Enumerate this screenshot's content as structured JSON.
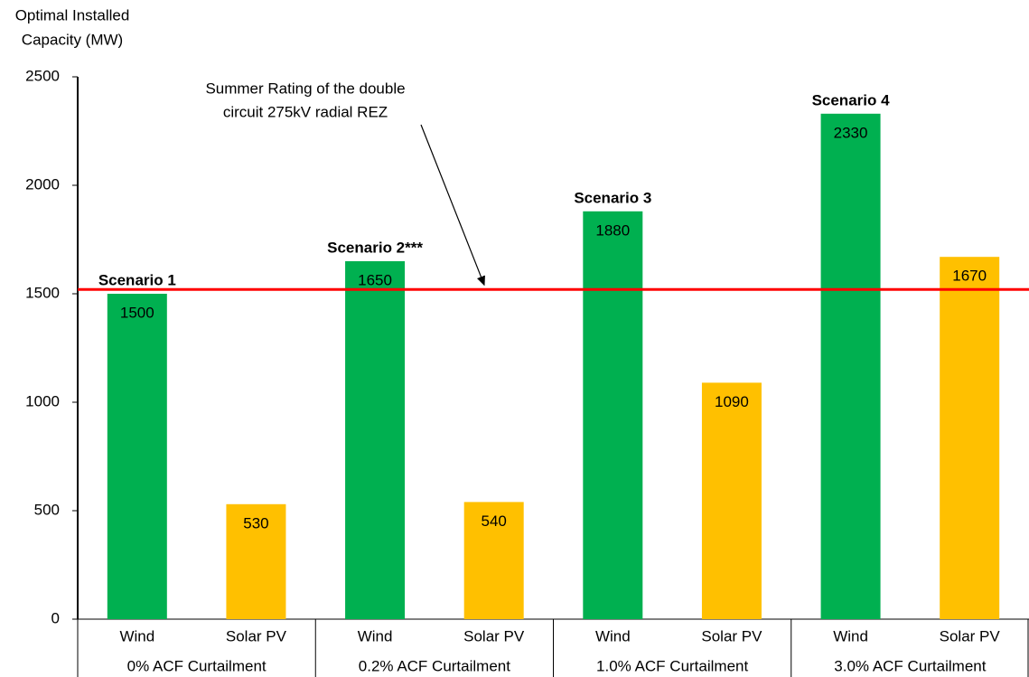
{
  "chart_data": {
    "type": "bar",
    "ylabel": [
      "Optimal Installed",
      "Capacity (MW)"
    ],
    "categories": [
      "Wind",
      "Solar PV",
      "Wind",
      "Solar PV",
      "Wind",
      "Solar PV",
      "Wind",
      "Solar PV"
    ],
    "groups": [
      "0% ACF Curtailment",
      "0.2% ACF Curtailment",
      "1.0% ACF Curtailment",
      "3.0% ACF Curtailment"
    ],
    "values": [
      1500,
      530,
      1650,
      540,
      1880,
      1090,
      2330,
      1670
    ],
    "colors": [
      "#00b050",
      "#ffc000",
      "#00b050",
      "#ffc000",
      "#00b050",
      "#ffc000",
      "#00b050",
      "#ffc000"
    ],
    "bar_labels": [
      "Scenario 1",
      null,
      "Scenario 2***",
      null,
      "Scenario 3",
      null,
      "Scenario 4",
      null
    ],
    "ylim": [
      0,
      2500
    ],
    "yticks": [
      0,
      500,
      1000,
      1500,
      2000,
      2500
    ],
    "reference_line": {
      "value": 1520,
      "color": "#ff0000",
      "label": [
        "Summer Rating of the double",
        "circuit 275kV radial REZ"
      ]
    }
  }
}
